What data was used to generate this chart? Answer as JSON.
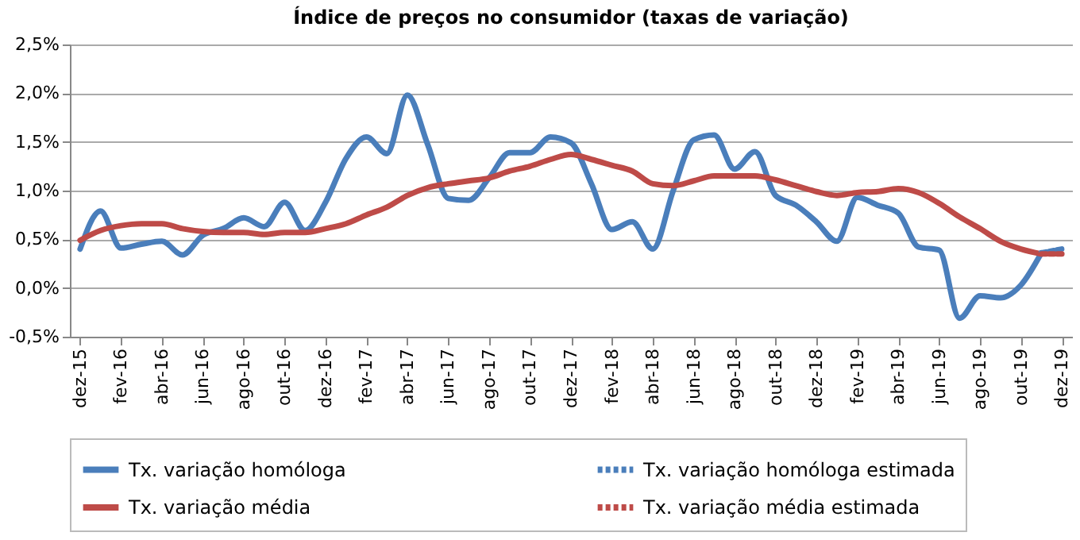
{
  "chart_data": {
    "type": "line",
    "title": "Índice de preços no consumidor  (taxas  de variação)",
    "categories": [
      "dez-15",
      null,
      "fev-16",
      null,
      "abr-16",
      null,
      "jun-16",
      null,
      "ago-16",
      null,
      "out-16",
      null,
      "dez-16",
      null,
      "fev-17",
      null,
      "abr-17",
      null,
      "jun-17",
      null,
      "ago-17",
      null,
      "out-17",
      null,
      "dez-17",
      null,
      "fev-18",
      null,
      "abr-18",
      null,
      "jun-18",
      null,
      "ago-18",
      null,
      "out-18",
      null,
      "dez-18",
      null,
      "fev-19",
      null,
      "abr-19",
      null,
      "jun-19",
      null,
      "ago-19",
      null,
      "out-19",
      null,
      "dez-19"
    ],
    "series": [
      {
        "name": "Tx. variação homóloga",
        "color": "#4a7ebb",
        "line_style": "solid",
        "values": [
          0.4,
          0.79,
          0.41,
          0.45,
          0.48,
          0.34,
          0.54,
          0.61,
          0.72,
          0.63,
          0.88,
          0.59,
          0.88,
          1.33,
          1.55,
          1.38,
          1.98,
          1.47,
          0.92,
          0.9,
          1.13,
          1.39,
          1.39,
          1.55,
          1.49,
          1.07,
          0.6,
          0.68,
          0.4,
          1.0,
          1.52,
          1.57,
          1.22,
          1.4,
          0.95,
          0.85,
          0.68,
          0.48,
          0.93,
          0.85,
          0.77,
          0.42,
          0.39,
          -0.31,
          -0.08,
          -0.1,
          0.03,
          0.36,
          null
        ]
      },
      {
        "name": "Tx. variação média",
        "color": "#be4b48",
        "line_style": "solid",
        "values": [
          0.49,
          0.59,
          0.64,
          0.66,
          0.66,
          0.61,
          0.58,
          0.57,
          0.57,
          0.55,
          0.57,
          0.57,
          0.61,
          0.66,
          0.75,
          0.83,
          0.95,
          1.03,
          1.07,
          1.1,
          1.13,
          1.2,
          1.25,
          1.32,
          1.37,
          1.32,
          1.26,
          1.2,
          1.07,
          1.05,
          1.1,
          1.15,
          1.15,
          1.15,
          1.11,
          1.05,
          0.99,
          0.95,
          0.98,
          0.99,
          1.02,
          0.98,
          0.87,
          0.73,
          0.61,
          0.48,
          0.4,
          0.35,
          null
        ]
      },
      {
        "name": "Tx. variação homóloga estimada",
        "color": "#4a7ebb",
        "line_style": "dotted",
        "values": [
          null,
          null,
          null,
          null,
          null,
          null,
          null,
          null,
          null,
          null,
          null,
          null,
          null,
          null,
          null,
          null,
          null,
          null,
          null,
          null,
          null,
          null,
          null,
          null,
          null,
          null,
          null,
          null,
          null,
          null,
          null,
          null,
          null,
          null,
          null,
          null,
          null,
          null,
          null,
          null,
          null,
          null,
          null,
          null,
          null,
          null,
          null,
          0.36,
          0.4
        ]
      },
      {
        "name": "Tx. variação média  estimada",
        "color": "#be4b48",
        "line_style": "dotted",
        "values": [
          null,
          null,
          null,
          null,
          null,
          null,
          null,
          null,
          null,
          null,
          null,
          null,
          null,
          null,
          null,
          null,
          null,
          null,
          null,
          null,
          null,
          null,
          null,
          null,
          null,
          null,
          null,
          null,
          null,
          null,
          null,
          null,
          null,
          null,
          null,
          null,
          null,
          null,
          null,
          null,
          null,
          null,
          null,
          null,
          null,
          null,
          null,
          0.35,
          0.35
        ]
      }
    ],
    "ylim": [
      -0.5,
      2.5
    ],
    "yticks": [
      {
        "value": -0.5,
        "label": "-0,5%"
      },
      {
        "value": 0,
        "label": "0,0%"
      },
      {
        "value": 0.5,
        "label": "0,5%"
      },
      {
        "value": 1,
        "label": "1,0%"
      },
      {
        "value": 1.5,
        "label": "1,5%"
      },
      {
        "value": 2,
        "label": "2,0%"
      },
      {
        "value": 2.5,
        "label": "2,5%"
      }
    ],
    "grid": "y",
    "legend": "bottom",
    "marker": "none"
  }
}
